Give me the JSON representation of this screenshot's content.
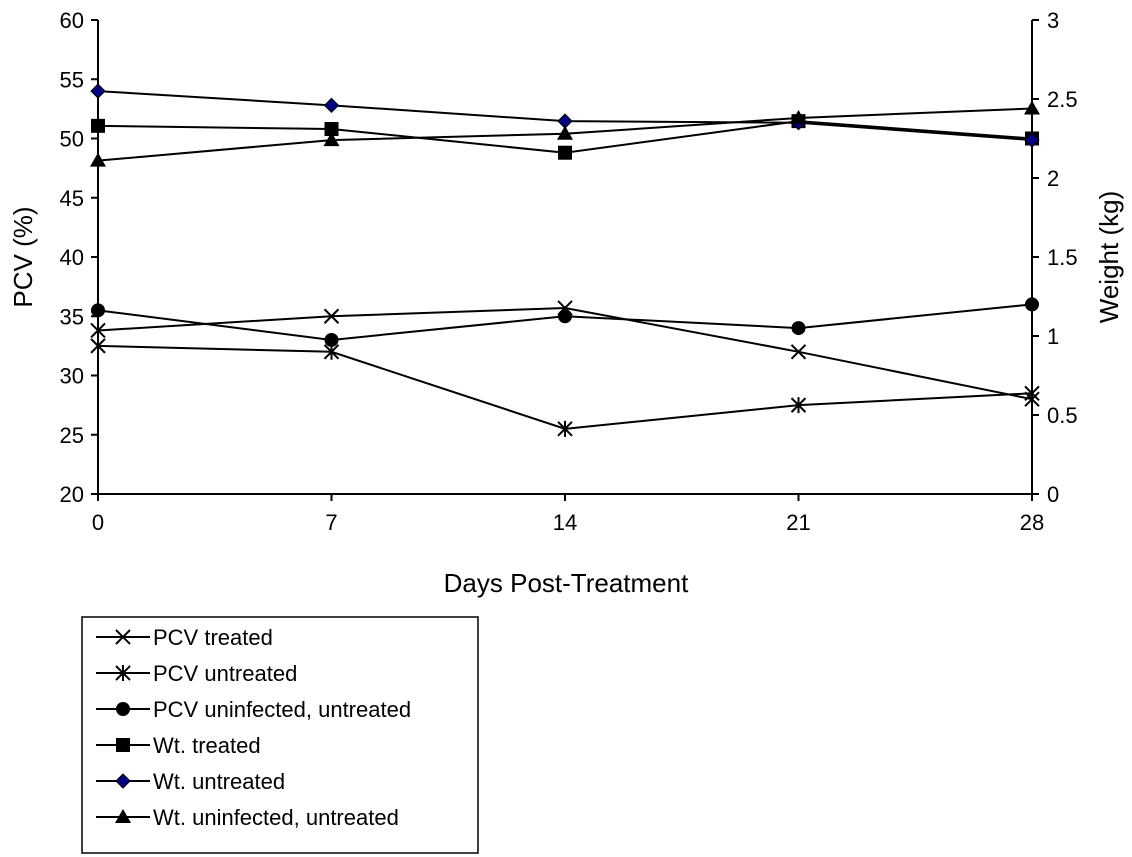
{
  "chart_data": {
    "type": "line",
    "title": "",
    "xlabel": "Days Post-Treatment",
    "ylabel": "PCV (%)",
    "y2label": "Weight (kg)",
    "x": [
      0,
      7,
      14,
      21,
      28
    ],
    "x_tick_labels": [
      "0",
      "7",
      "14",
      "21",
      "28"
    ],
    "ylim": [
      20,
      60
    ],
    "y_tick_labels": [
      "20",
      "25",
      "30",
      "35",
      "40",
      "45",
      "50",
      "55",
      "60"
    ],
    "y2lim": [
      0,
      3
    ],
    "y2_tick_labels": [
      "0",
      "0.5",
      "1",
      "1.5",
      "2",
      "2.5",
      "3"
    ],
    "grid": false,
    "legend_position": "bottom-left",
    "series": [
      {
        "name": "PCV treated",
        "axis": "left",
        "marker": "x",
        "color": "#000000",
        "values": [
          33.8,
          35.0,
          35.7,
          32.0,
          28.0
        ]
      },
      {
        "name": "PCV untreated",
        "axis": "left",
        "marker": "star",
        "color": "#000000",
        "values": [
          32.5,
          32.0,
          25.5,
          27.5,
          28.5
        ]
      },
      {
        "name": "PCV uninfected, untreated",
        "axis": "left",
        "marker": "circle",
        "color": "#000000",
        "values": [
          35.5,
          33.0,
          35.0,
          34.0,
          36.0
        ]
      },
      {
        "name": "Wt. treated",
        "axis": "right",
        "marker": "square",
        "color": "#000000",
        "values": [
          2.33,
          2.31,
          2.16,
          2.36,
          2.25
        ]
      },
      {
        "name": "Wt. untreated",
        "axis": "right",
        "marker": "diamond",
        "color": "#000080",
        "values": [
          2.55,
          2.46,
          2.36,
          2.35,
          2.24
        ]
      },
      {
        "name": "Wt. uninfected, untreated",
        "axis": "right",
        "marker": "triangle",
        "color": "#000000",
        "values": [
          2.11,
          2.24,
          2.28,
          2.38,
          2.44
        ]
      }
    ]
  }
}
